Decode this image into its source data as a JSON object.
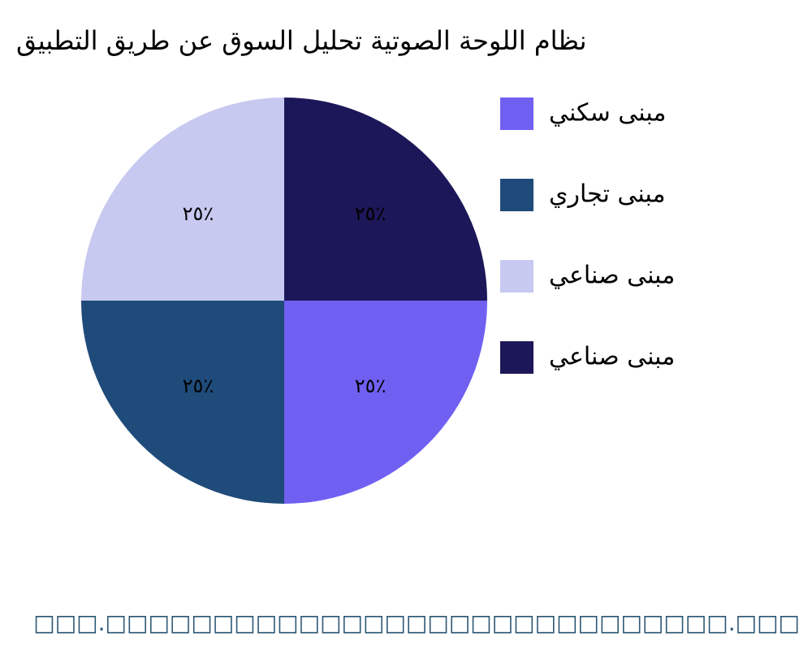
{
  "chart_data": {
    "type": "pie",
    "title": "نظام اللوحة الصوتية تحليل السوق عن طريق التطبيق",
    "categories": [
      "مبنى سكني",
      "مبنى تجاري",
      "مبنى صناعي",
      "مبنى صناعي"
    ],
    "values": [
      25,
      25,
      25,
      25
    ],
    "value_labels": [
      "٢٥٪",
      "٢٥٪",
      "٢٥٪",
      "٢٥٪"
    ],
    "colors": [
      "#7060f2",
      "#1f4b7a",
      "#c8c9f0",
      "#1c1758"
    ],
    "source": "□□□.□□□□□□□□□□□□□□□□□□□□□□□□□□□□□.□□□"
  }
}
